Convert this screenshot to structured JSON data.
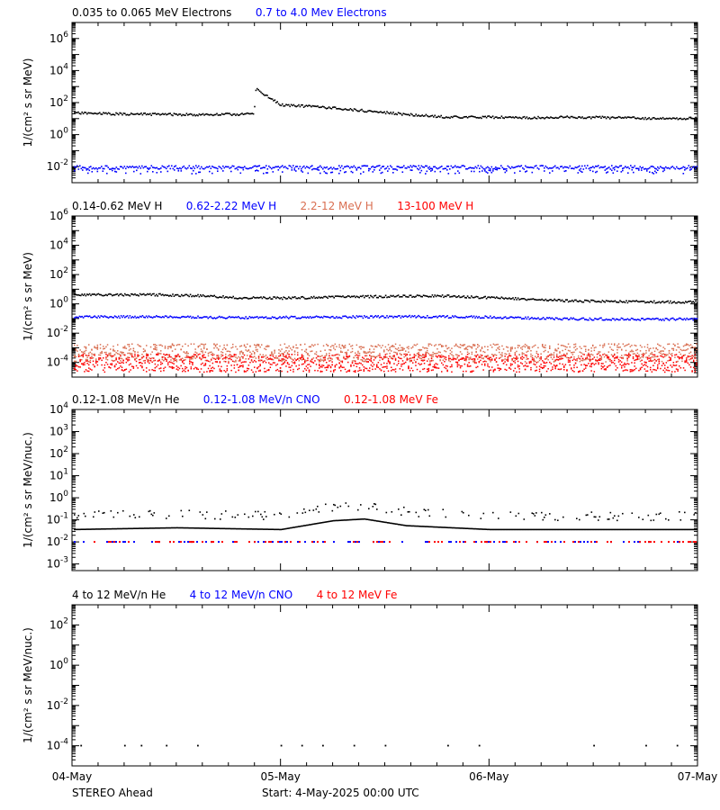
{
  "chart_data": [
    {
      "type": "scatter",
      "ylabel": "1/(cm² s sr MeV)",
      "ylim": [
        0.001,
        10000000
      ],
      "log_y": true,
      "yticks": [
        {
          "value": 0.01,
          "base": "10",
          "exp": "-2"
        },
        {
          "value": 1,
          "base": "10",
          "exp": "0"
        },
        {
          "value": 100,
          "base": "10",
          "exp": "2"
        },
        {
          "value": 10000,
          "base": "10",
          "exp": "4"
        },
        {
          "value": 1000000,
          "base": "10",
          "exp": "6"
        }
      ],
      "series": [
        {
          "name": "0.035 to 0.065 MeV Electrons",
          "color": "#000000",
          "points": [
            [
              0,
              22
            ],
            [
              0.2,
              19
            ],
            [
              0.4,
              18
            ],
            [
              0.6,
              17
            ],
            [
              0.8,
              18
            ],
            [
              0.87,
              20
            ],
            [
              0.88,
              800
            ],
            [
              0.92,
              300
            ],
            [
              1.0,
              70
            ],
            [
              1.2,
              50
            ],
            [
              1.4,
              30
            ],
            [
              1.6,
              18
            ],
            [
              1.8,
              12
            ],
            [
              2.0,
              12
            ],
            [
              2.2,
              11
            ],
            [
              2.4,
              12
            ],
            [
              2.6,
              11
            ],
            [
              2.8,
              10
            ],
            [
              3.0,
              10
            ]
          ]
        },
        {
          "name": "0.7 to 4.0 Mev Electrons",
          "color": "#0000ff",
          "points": [
            [
              0,
              0.01
            ],
            [
              3,
              0.01
            ]
          ]
        }
      ]
    },
    {
      "type": "scatter",
      "ylabel": "1/(cm² s sr MeV)",
      "ylim": [
        1e-05,
        1000000
      ],
      "log_y": true,
      "yticks": [
        {
          "value": 0.0001,
          "base": "10",
          "exp": "-4"
        },
        {
          "value": 0.01,
          "base": "10",
          "exp": "-2"
        },
        {
          "value": 1,
          "base": "10",
          "exp": "0"
        },
        {
          "value": 100,
          "base": "10",
          "exp": "2"
        },
        {
          "value": 10000,
          "base": "10",
          "exp": "4"
        },
        {
          "value": 1000000,
          "base": "10",
          "exp": "6"
        }
      ],
      "series": [
        {
          "name": "0.14-0.62 MeV H",
          "color": "#000000",
          "points": [
            [
              0,
              4
            ],
            [
              0.4,
              4
            ],
            [
              0.6,
              3.5
            ],
            [
              0.8,
              2.5
            ],
            [
              1.0,
              2.4
            ],
            [
              1.2,
              2.7
            ],
            [
              1.4,
              3
            ],
            [
              1.6,
              3.2
            ],
            [
              1.8,
              3.3
            ],
            [
              2.0,
              2.5
            ],
            [
              2.2,
              2
            ],
            [
              2.4,
              1.5
            ],
            [
              2.6,
              1.4
            ],
            [
              2.8,
              1.3
            ],
            [
              3.0,
              1.3
            ]
          ]
        },
        {
          "name": "0.62-2.22 MeV H",
          "color": "#0000ff",
          "points": [
            [
              0,
              0.12
            ],
            [
              0.4,
              0.13
            ],
            [
              0.8,
              0.11
            ],
            [
              1.2,
              0.12
            ],
            [
              1.6,
              0.13
            ],
            [
              2.0,
              0.12
            ],
            [
              2.4,
              0.09
            ],
            [
              2.8,
              0.085
            ],
            [
              3.0,
              0.09
            ]
          ]
        },
        {
          "name": "2.2-12 MeV H",
          "color": "#d96f52",
          "points": [
            [
              0,
              0.0005
            ],
            [
              3,
              0.0005
            ]
          ]
        },
        {
          "name": "13-100 MeV H",
          "color": "#ff0000",
          "points": [
            [
              0,
              0.0001
            ],
            [
              3,
              0.0001
            ]
          ]
        }
      ]
    },
    {
      "type": "scatter",
      "ylabel": "1/(cm² s sr MeV/nuc.)",
      "ylim": [
        0.0005,
        10000
      ],
      "log_y": true,
      "yticks": [
        {
          "value": 0.001,
          "base": "10",
          "exp": "-3"
        },
        {
          "value": 0.01,
          "base": "10",
          "exp": "-2"
        },
        {
          "value": 0.1,
          "base": "10",
          "exp": "-1"
        },
        {
          "value": 1,
          "base": "10",
          "exp": "0"
        },
        {
          "value": 10,
          "base": "10",
          "exp": "1"
        },
        {
          "value": 100,
          "base": "10",
          "exp": "2"
        },
        {
          "value": 1000,
          "base": "10",
          "exp": "3"
        },
        {
          "value": 10000,
          "base": "10",
          "exp": "4"
        }
      ],
      "series": [
        {
          "name": "0.12-1.08 MeV/n He",
          "color": "#000000",
          "points": [
            [
              0,
              0.1
            ],
            [
              0.5,
              0.12
            ],
            [
              1.0,
              0.1
            ],
            [
              1.25,
              0.25
            ],
            [
              1.4,
              0.3
            ],
            [
              1.6,
              0.15
            ],
            [
              2.0,
              0.1
            ],
            [
              2.5,
              0.1
            ],
            [
              3.0,
              0.1
            ]
          ]
        },
        {
          "name": "0.12-1.08 MeV/n CNO",
          "color": "#0000ff",
          "points": [
            [
              0,
              0.01
            ],
            [
              3,
              0.01
            ]
          ]
        },
        {
          "name": "0.12-1.08 MeV Fe",
          "color": "#ff0000",
          "points": [
            [
              0,
              0.01
            ],
            [
              3,
              0.01
            ]
          ]
        }
      ]
    },
    {
      "type": "scatter",
      "ylabel": "1/(cm² s sr MeV/nuc.)",
      "ylim": [
        1e-05,
        1000
      ],
      "log_y": true,
      "yticks": [
        {
          "value": 0.0001,
          "base": "10",
          "exp": "-4"
        },
        {
          "value": 0.01,
          "base": "10",
          "exp": "-2"
        },
        {
          "value": 1,
          "base": "10",
          "exp": "0"
        },
        {
          "value": 100,
          "base": "10",
          "exp": "2"
        }
      ],
      "series": [
        {
          "name": "4 to 12 MeV/n He",
          "color": "#000000",
          "points": [
            [
              0.04,
              0.0001
            ],
            [
              0.25,
              0.0001
            ],
            [
              0.33,
              0.0001
            ],
            [
              0.45,
              0.0001
            ],
            [
              0.6,
              0.0001
            ],
            [
              1.0,
              0.0001
            ],
            [
              1.1,
              0.0001
            ],
            [
              1.2,
              0.0001
            ],
            [
              1.35,
              0.0001
            ],
            [
              1.5,
              0.0001
            ],
            [
              1.8,
              0.0001
            ],
            [
              1.95,
              0.0001
            ],
            [
              2.5,
              0.0001
            ],
            [
              2.75,
              0.0001
            ],
            [
              2.9,
              0.0001
            ]
          ]
        },
        {
          "name": "4 to 12 MeV/n CNO",
          "color": "#0000ff",
          "points": []
        },
        {
          "name": "4 to 12 MeV Fe",
          "color": "#ff0000",
          "points": []
        }
      ]
    }
  ],
  "x_axis": {
    "xlim": [
      0,
      3
    ],
    "ticks": [
      {
        "value": 0,
        "label": "04-May"
      },
      {
        "value": 1,
        "label": "05-May"
      },
      {
        "value": 2,
        "label": "06-May"
      },
      {
        "value": 3,
        "label": "07-May"
      }
    ]
  },
  "footer": {
    "spacecraft": "STEREO Ahead",
    "start": "Start:  4-May-2025 00:00 UTC"
  }
}
